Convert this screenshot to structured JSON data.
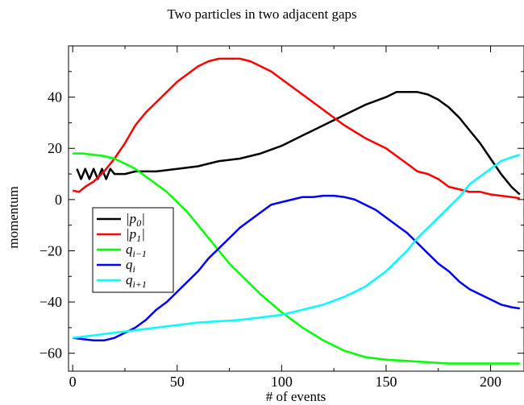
{
  "chart_data": {
    "type": "line",
    "title": "Two particles in two adjacent gaps",
    "xlabel": "# of events",
    "ylabel": "momentum",
    "xlim": [
      -2,
      216
    ],
    "ylim": [
      -67,
      60
    ],
    "xticks": [
      0,
      50,
      100,
      150,
      200
    ],
    "yticks": [
      -60,
      -40,
      -20,
      0,
      20,
      40
    ],
    "ytick_labels": [
      "−60",
      "−40",
      "−20",
      "0",
      "20",
      "40"
    ],
    "grid": false,
    "legend_position": "left",
    "series": [
      {
        "name": "|p0|",
        "color": "#000000",
        "x": [
          2,
          4,
          6,
          8,
          10,
          12,
          14,
          16,
          18,
          20,
          25,
          30,
          35,
          40,
          50,
          60,
          70,
          80,
          90,
          100,
          110,
          120,
          130,
          140,
          150,
          155,
          160,
          165,
          170,
          175,
          180,
          185,
          190,
          195,
          200,
          205,
          210,
          214
        ],
        "y": [
          12,
          8,
          12,
          8,
          12,
          8,
          12,
          8,
          12,
          10,
          10,
          11,
          11,
          11,
          12,
          13,
          15,
          16,
          18,
          21,
          25,
          29,
          33,
          37,
          40,
          42,
          42,
          42,
          41,
          39,
          36,
          32,
          27,
          22,
          16,
          10,
          5,
          2
        ]
      },
      {
        "name": "|p1|",
        "color": "#ff0000",
        "x": [
          0,
          3,
          6,
          10,
          15,
          20,
          25,
          30,
          35,
          40,
          45,
          50,
          55,
          60,
          65,
          70,
          75,
          80,
          85,
          90,
          95,
          100,
          110,
          120,
          130,
          140,
          150,
          160,
          165,
          170,
          175,
          180,
          185,
          190,
          195,
          200,
          205,
          210,
          214
        ],
        "y": [
          3.5,
          3,
          5,
          7,
          11,
          16,
          22,
          29,
          34,
          38,
          42,
          46,
          49,
          52,
          54,
          55,
          55,
          55,
          54,
          52,
          50,
          47,
          41,
          35,
          29,
          24,
          20,
          14,
          11,
          10,
          8,
          5,
          4,
          3,
          3,
          2,
          1.5,
          1,
          0.5
        ]
      },
      {
        "name": "q_{i−1}",
        "color": "#00ff00",
        "x": [
          0,
          5,
          10,
          15,
          20,
          25,
          30,
          35,
          40,
          45,
          50,
          55,
          60,
          65,
          70,
          75,
          80,
          90,
          100,
          110,
          120,
          130,
          140,
          150,
          160,
          170,
          180,
          190,
          200,
          214
        ],
        "y": [
          18,
          18,
          17.5,
          17,
          16,
          14,
          12,
          9,
          6,
          3,
          -1,
          -5,
          -10,
          -15,
          -20,
          -25,
          -29,
          -37,
          -44,
          -50,
          -55,
          -59,
          -61.5,
          -62.5,
          -63,
          -63.5,
          -64,
          -64,
          -64,
          -64
        ]
      },
      {
        "name": "q_i",
        "color": "#0000ff",
        "x": [
          0,
          5,
          10,
          15,
          20,
          25,
          30,
          35,
          40,
          45,
          50,
          55,
          60,
          65,
          70,
          75,
          80,
          85,
          90,
          95,
          100,
          105,
          110,
          115,
          120,
          125,
          130,
          135,
          140,
          145,
          150,
          155,
          160,
          165,
          170,
          175,
          180,
          185,
          190,
          195,
          200,
          205,
          210,
          214
        ],
        "y": [
          -54,
          -54.5,
          -55,
          -55,
          -54,
          -52,
          -50,
          -47,
          -43,
          -40,
          -36,
          -32,
          -28,
          -23,
          -19,
          -15,
          -11,
          -8,
          -5,
          -2,
          -1,
          0,
          1,
          1,
          1.5,
          1.5,
          1,
          0,
          -2,
          -4,
          -7,
          -10,
          -13,
          -17,
          -21,
          -25,
          -28,
          -32,
          -35,
          -37,
          -39,
          -41,
          -42,
          -42.5
        ]
      },
      {
        "name": "q_{i+1}",
        "color": "#00ffff",
        "x": [
          0,
          10,
          20,
          30,
          40,
          50,
          60,
          70,
          80,
          90,
          100,
          110,
          120,
          130,
          140,
          150,
          155,
          160,
          165,
          170,
          175,
          180,
          185,
          190,
          195,
          200,
          205,
          210,
          214
        ],
        "y": [
          -54,
          -53,
          -52,
          -51,
          -50,
          -49,
          -48,
          -47.5,
          -47,
          -46,
          -45,
          -43,
          -41,
          -38,
          -34,
          -28,
          -24,
          -20,
          -15,
          -11,
          -7,
          -3,
          1,
          6,
          9,
          12,
          15,
          16.5,
          17.5
        ]
      }
    ]
  }
}
